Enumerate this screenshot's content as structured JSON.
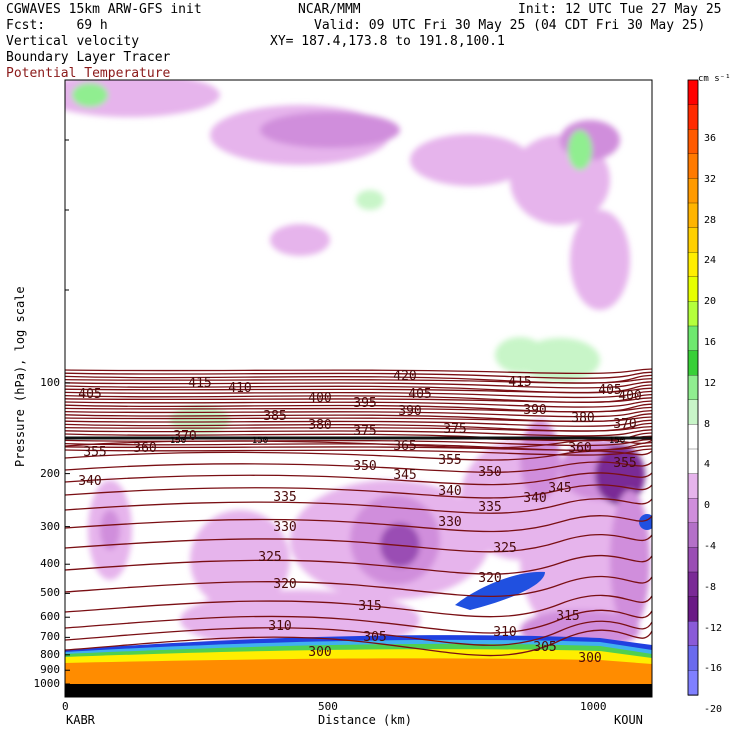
{
  "header": {
    "left1": "CGWAVES 15km ARW-GFS init",
    "center1": "NCAR/MMM",
    "right1": "Init: 12 UTC Tue 27 May 25",
    "left2": "Fcst:    69 h",
    "right2": "Valid: 09 UTC Fri 30 May 25 (04 CDT Fri 30 May 25)",
    "field1": "Vertical velocity",
    "field2": "Boundary Layer Tracer",
    "field3": "Potential Temperature",
    "xy": "XY= 187.4,173.8 to 191.8,100.1"
  },
  "colors": {
    "theta_contour": "#7a0f14",
    "tracer_contour": "#111111",
    "ground": "#ff8c00"
  },
  "chart_data": {
    "type": "cross-section",
    "title": "",
    "xlabel": "Distance (km)",
    "ylabel": "Pressure (hPa), log scale",
    "xlim": [
      0,
      1100
    ],
    "x_ticks": [
      "0",
      "500",
      "1000"
    ],
    "x_endpoints": [
      "KABR",
      "KOUN"
    ],
    "y_scale": "log",
    "y_ticks": [
      "100",
      "200",
      "300",
      "400",
      "500",
      "600",
      "700",
      "800",
      "900",
      "1000"
    ],
    "grid": false,
    "legend": "colorbar-right",
    "colorbar": {
      "unit": "cm s⁻¹",
      "ticks": [
        "36",
        "32",
        "28",
        "24",
        "20",
        "16",
        "12",
        "8",
        "4",
        "0",
        "-4",
        "-8",
        "-12",
        "-16",
        "-20"
      ],
      "colors": [
        "#ff0000",
        "#ff2a00",
        "#ff5a00",
        "#ff7a00",
        "#ff9a00",
        "#ffb400",
        "#ffd000",
        "#ffee00",
        "#e6ff00",
        "#b4ff3c",
        "#6ee86e",
        "#38d038",
        "#90ee90",
        "#c8f5c8",
        "#ffffff",
        "#ffffff",
        "#e6b4ec",
        "#d08edc",
        "#b470c8",
        "#9a4eb4",
        "#7a2a96",
        "#6a1a86",
        "#8a5ad8",
        "#6a6aee",
        "#8080ff"
      ]
    },
    "theta_labels": [
      "420",
      "415",
      "415",
      "410",
      "405",
      "405",
      "405",
      "400",
      "400",
      "395",
      "390",
      "390",
      "385",
      "380",
      "380",
      "375",
      "375",
      "370",
      "370",
      "365",
      "360",
      "360",
      "355",
      "355",
      "355",
      "350",
      "350",
      "345",
      "345",
      "340",
      "340",
      "340",
      "335",
      "335",
      "330",
      "330",
      "325",
      "325",
      "320",
      "320",
      "315",
      "315",
      "310",
      "310",
      "305",
      "305",
      "300",
      "300"
    ],
    "tracer_labels": [
      "150",
      "150",
      "150"
    ]
  }
}
